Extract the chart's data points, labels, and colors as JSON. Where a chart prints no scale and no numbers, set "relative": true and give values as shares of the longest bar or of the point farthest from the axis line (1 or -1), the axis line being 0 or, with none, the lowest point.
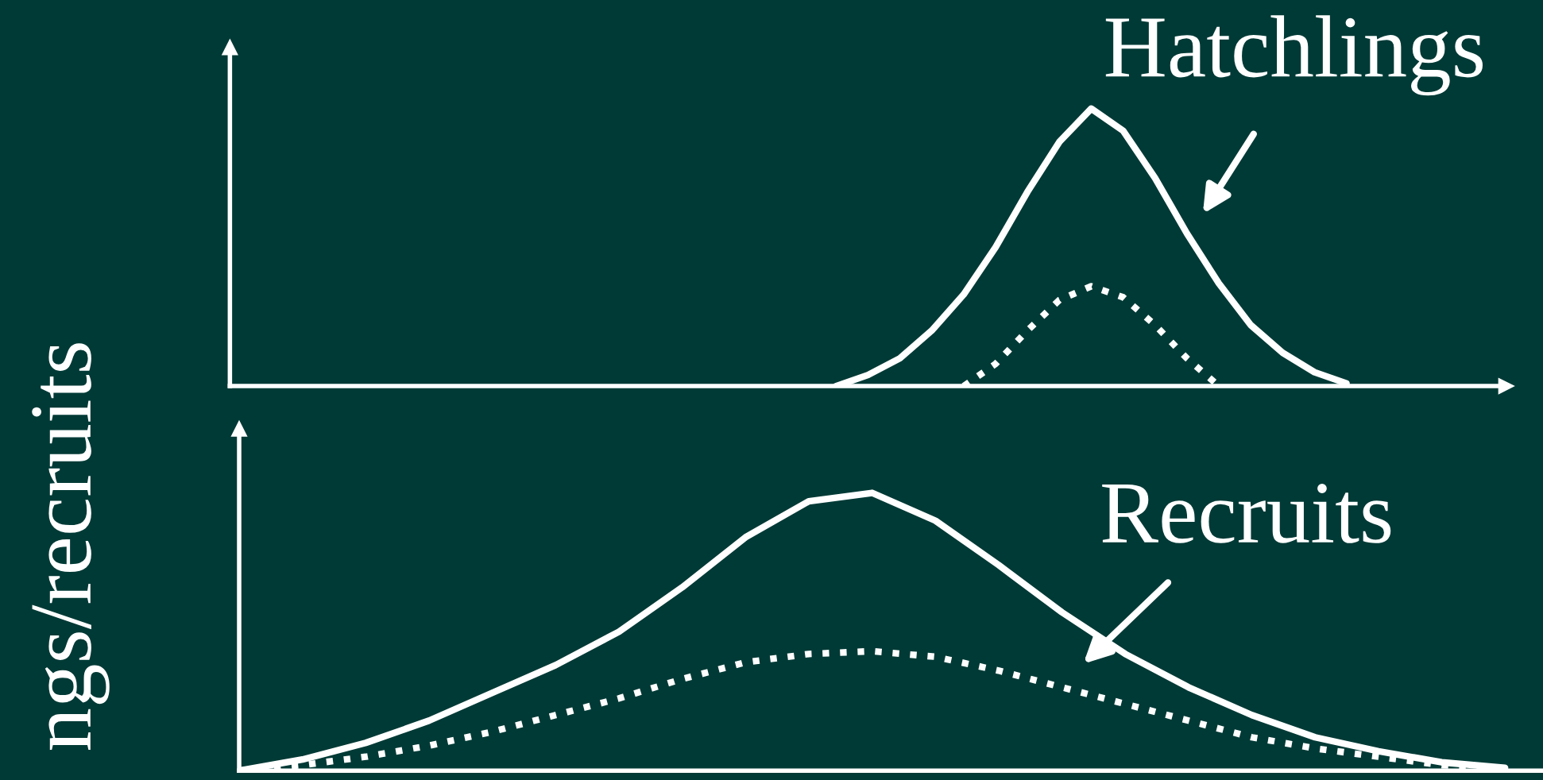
{
  "chart_data": [
    {
      "type": "line",
      "relative": true,
      "categories": [
        null,
        null,
        null,
        null,
        null,
        null,
        null,
        null,
        null,
        null,
        null,
        null,
        null,
        null,
        null,
        null,
        null,
        null,
        null,
        null,
        null,
        null,
        null,
        null,
        null,
        null,
        null,
        null,
        null,
        null,
        null,
        null,
        null,
        null,
        null,
        null,
        null,
        null,
        null,
        null,
        null
      ],
      "series": [
        {
          "color": "#ffffff",
          "line_style": "solid",
          "values": [
            null,
            null,
            null,
            null,
            null,
            null,
            null,
            null,
            null,
            null,
            null,
            null,
            null,
            null,
            null,
            null,
            null,
            null,
            null,
            0.0,
            0.04,
            0.1,
            0.2,
            0.33,
            0.5,
            0.7,
            0.88,
            1.0,
            0.92,
            0.75,
            0.55,
            0.37,
            0.22,
            0.12,
            0.05,
            0.01,
            null,
            null,
            null,
            null,
            null
          ]
        },
        {
          "color": "#ffffff",
          "line_style": "dotted",
          "values": [
            null,
            null,
            null,
            null,
            null,
            null,
            null,
            null,
            null,
            null,
            null,
            null,
            null,
            null,
            null,
            null,
            null,
            null,
            null,
            null,
            null,
            null,
            null,
            0.0,
            0.08,
            0.2,
            0.31,
            0.36,
            0.32,
            0.22,
            0.1,
            0.0,
            null,
            null,
            null,
            null,
            null,
            null,
            null,
            null,
            null
          ]
        }
      ],
      "annotations": [
        "Hatchlings"
      ],
      "grid": false,
      "legend": false
    },
    {
      "type": "line",
      "relative": true,
      "ylabel": "ngs/recruits",
      "categories": [
        null,
        null,
        null,
        null,
        null,
        null,
        null,
        null,
        null,
        null,
        null,
        null,
        null,
        null,
        null,
        null,
        null,
        null,
        null,
        null,
        null
      ],
      "series": [
        {
          "color": "#ffffff",
          "line_style": "solid",
          "values": [
            0.0,
            0.04,
            0.1,
            0.18,
            0.28,
            0.38,
            0.5,
            0.66,
            0.84,
            0.97,
            1.0,
            0.9,
            0.74,
            0.57,
            0.42,
            0.3,
            0.2,
            0.12,
            0.07,
            0.03,
            0.01
          ]
        },
        {
          "color": "#ffffff",
          "line_style": "dotted",
          "values": [
            0.0,
            0.02,
            0.05,
            0.09,
            0.14,
            0.2,
            0.26,
            0.33,
            0.39,
            0.42,
            0.43,
            0.41,
            0.36,
            0.3,
            0.24,
            0.18,
            0.12,
            0.08,
            0.05,
            0.02,
            0.01
          ]
        }
      ],
      "annotations": [
        "Recruits"
      ],
      "grid": false,
      "legend": false
    }
  ]
}
